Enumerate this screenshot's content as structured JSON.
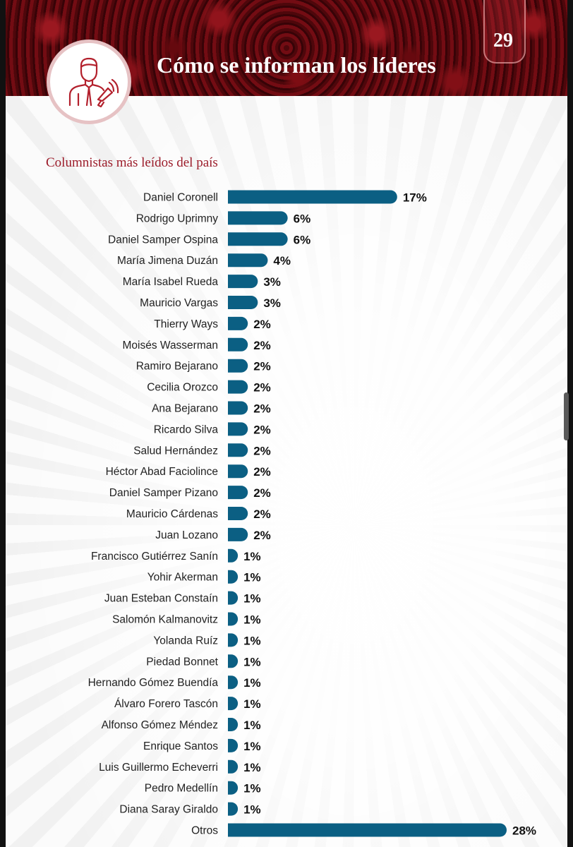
{
  "header": {
    "title": "Cómo se informan los líderes",
    "page_number": "29",
    "icon": "leader-with-megaphone-icon"
  },
  "chart_title": "Columnistas más leídos del país",
  "colors": {
    "bar": "#0b5f83",
    "brand": "#9c1c2a"
  },
  "chart_data": {
    "type": "bar",
    "orientation": "horizontal",
    "title": "Columnistas más leídos del país",
    "unit": "%",
    "categories": [
      "Daniel Coronell",
      "Rodrigo Uprimny",
      "Daniel Samper Ospina",
      "María Jimena Duzán",
      "María Isabel Rueda",
      "Mauricio Vargas",
      "Thierry Ways",
      "Moisés Wasserman",
      "Ramiro Bejarano",
      "Cecilia Orozco",
      "Ana Bejarano",
      "Ricardo Silva",
      "Salud Hernández",
      "Héctor Abad Faciolince",
      "Daniel Samper Pizano",
      "Mauricio Cárdenas",
      "Juan Lozano",
      "Francisco Gutiérrez Sanín",
      "Yohir Akerman",
      "Juan Esteban Constaín",
      "Salomón Kalmanovitz",
      "Yolanda Ruíz",
      "Piedad Bonnet",
      "Hernando Gómez Buendía",
      "Álvaro Forero Tascón",
      "Alfonso Gómez Méndez",
      "Enrique Santos",
      "Luis Guillermo Echeverri",
      "Pedro Medellín",
      "Diana Saray Giraldo",
      "Otros"
    ],
    "values": [
      17,
      6,
      6,
      4,
      3,
      3,
      2,
      2,
      2,
      2,
      2,
      2,
      2,
      2,
      2,
      2,
      2,
      1,
      1,
      1,
      1,
      1,
      1,
      1,
      1,
      1,
      1,
      1,
      1,
      1,
      28
    ],
    "labels": [
      "17%",
      "6%",
      "6%",
      "4%",
      "3%",
      "3%",
      "2%",
      "2%",
      "2%",
      "2%",
      "2%",
      "2%",
      "2%",
      "2%",
      "2%",
      "2%",
      "2%",
      "1%",
      "1%",
      "1%",
      "1%",
      "1%",
      "1%",
      "1%",
      "1%",
      "1%",
      "1%",
      "1%",
      "1%",
      "1%",
      "28%"
    ],
    "xlim": [
      0,
      28
    ],
    "grid": false,
    "legend": "none"
  }
}
